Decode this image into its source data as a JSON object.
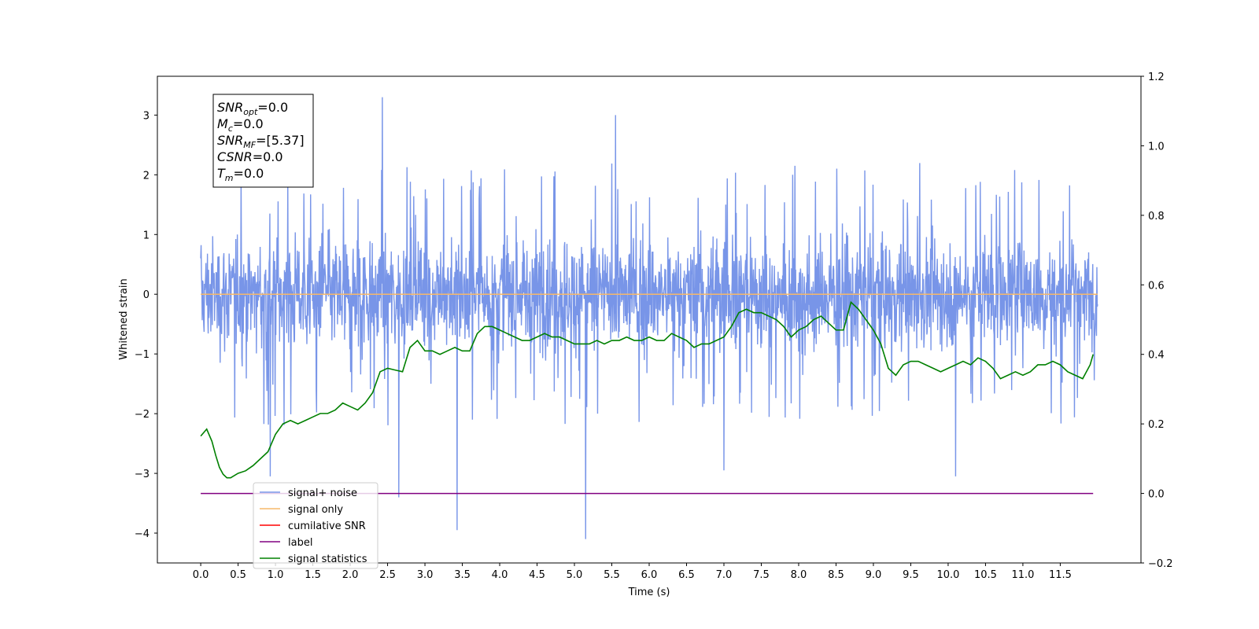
{
  "chart_data": {
    "type": "line",
    "title": "",
    "xlabel": "Time (s)",
    "ylabel": "Whitened strain",
    "xlim": [
      -0.58,
      12.58
    ],
    "ylim": [
      -4.5,
      3.65
    ],
    "y2lim": [
      -0.2,
      1.2
    ],
    "x_ticks": [
      "0.0",
      "0.5",
      "1.0",
      "1.5",
      "2.0",
      "2.5",
      "3.0",
      "3.5",
      "4.0",
      "4.5",
      "5.0",
      "5.5",
      "6.0",
      "6.5",
      "7.0",
      "7.5",
      "8.0",
      "8.5",
      "9.0",
      "9.5",
      "10.0",
      "10.5",
      "11.0",
      "11.5"
    ],
    "y_ticks": [
      "3",
      "2",
      "1",
      "0",
      "−1",
      "−2",
      "−3",
      "−4"
    ],
    "y2_ticks": [
      "1.2",
      "1.0",
      "0.8",
      "0.6",
      "0.4",
      "0.2",
      "0.0",
      "−0.2"
    ],
    "colors": {
      "signal_noise": "#7895e8",
      "signal_only": "#f5b86a",
      "cumulative_snr": "#ff0000",
      "label": "#800080",
      "signal_statistics": "#008000"
    },
    "series": [
      {
        "name": "signal+ noise",
        "description": "noise band, approximately -1.8 to +1.7 with spikes",
        "x_range": [
          0.0,
          12.0
        ],
        "spikes": [
          [
            2.43,
            3.3
          ],
          [
            5.55,
            3.0
          ],
          [
            2.65,
            -3.4
          ],
          [
            3.43,
            -3.95
          ],
          [
            5.15,
            -4.1
          ],
          [
            0.93,
            -3.05
          ],
          [
            7.0,
            -2.95
          ],
          [
            10.1,
            -3.05
          ]
        ]
      },
      {
        "name": "signal only",
        "x": [
          0.0,
          12.0
        ],
        "y": [
          0.0,
          0.0
        ]
      },
      {
        "name": "cumilative SNR",
        "x": [],
        "y": []
      },
      {
        "name": "label",
        "axis": "right",
        "x": [
          0.0,
          11.94
        ],
        "y": [
          0.0,
          0.0
        ]
      },
      {
        "name": "signal statistics",
        "axis": "right",
        "x": [
          0.0,
          0.08,
          0.15,
          0.2,
          0.25,
          0.3,
          0.35,
          0.4,
          0.5,
          0.6,
          0.7,
          0.8,
          0.9,
          1.0,
          1.1,
          1.2,
          1.3,
          1.4,
          1.5,
          1.6,
          1.7,
          1.8,
          1.9,
          2.0,
          2.1,
          2.2,
          2.3,
          2.4,
          2.5,
          2.6,
          2.7,
          2.8,
          2.9,
          3.0,
          3.1,
          3.2,
          3.3,
          3.4,
          3.5,
          3.6,
          3.7,
          3.8,
          3.9,
          4.0,
          4.1,
          4.2,
          4.3,
          4.4,
          4.5,
          4.6,
          4.7,
          4.8,
          4.9,
          5.0,
          5.1,
          5.2,
          5.3,
          5.4,
          5.5,
          5.6,
          5.7,
          5.8,
          5.9,
          6.0,
          6.1,
          6.2,
          6.3,
          6.4,
          6.5,
          6.6,
          6.7,
          6.8,
          6.9,
          7.0,
          7.1,
          7.2,
          7.3,
          7.4,
          7.5,
          7.6,
          7.7,
          7.8,
          7.9,
          8.0,
          8.1,
          8.2,
          8.3,
          8.4,
          8.5,
          8.6,
          8.7,
          8.8,
          8.9,
          9.0,
          9.1,
          9.2,
          9.3,
          9.4,
          9.5,
          9.6,
          9.7,
          9.8,
          9.9,
          10.0,
          10.1,
          10.2,
          10.3,
          10.4,
          10.5,
          10.6,
          10.7,
          10.8,
          10.9,
          11.0,
          11.1,
          11.2,
          11.3,
          11.4,
          11.5,
          11.6,
          11.7,
          11.8,
          11.9,
          11.94
        ],
        "y": [
          0.165,
          0.185,
          0.15,
          0.11,
          0.075,
          0.055,
          0.045,
          0.045,
          0.058,
          0.065,
          0.08,
          0.1,
          0.12,
          0.17,
          0.2,
          0.21,
          0.2,
          0.21,
          0.22,
          0.23,
          0.23,
          0.24,
          0.26,
          0.25,
          0.24,
          0.26,
          0.29,
          0.35,
          0.36,
          0.355,
          0.35,
          0.42,
          0.44,
          0.41,
          0.41,
          0.4,
          0.41,
          0.42,
          0.41,
          0.41,
          0.46,
          0.48,
          0.48,
          0.47,
          0.46,
          0.45,
          0.44,
          0.44,
          0.45,
          0.46,
          0.45,
          0.45,
          0.44,
          0.43,
          0.43,
          0.43,
          0.44,
          0.43,
          0.44,
          0.44,
          0.45,
          0.44,
          0.44,
          0.45,
          0.44,
          0.44,
          0.46,
          0.45,
          0.44,
          0.42,
          0.43,
          0.43,
          0.44,
          0.45,
          0.48,
          0.52,
          0.53,
          0.52,
          0.52,
          0.51,
          0.5,
          0.48,
          0.45,
          0.47,
          0.48,
          0.5,
          0.51,
          0.49,
          0.47,
          0.47,
          0.55,
          0.53,
          0.5,
          0.47,
          0.43,
          0.36,
          0.34,
          0.37,
          0.38,
          0.38,
          0.37,
          0.36,
          0.35,
          0.36,
          0.37,
          0.38,
          0.37,
          0.39,
          0.38,
          0.36,
          0.33,
          0.34,
          0.35,
          0.34,
          0.35,
          0.37,
          0.37,
          0.38,
          0.37,
          0.35,
          0.34,
          0.33,
          0.37,
          0.4
        ]
      }
    ],
    "legend": {
      "location": "lower-left",
      "entries": [
        "signal+ noise",
        "signal only",
        "cumilative SNR",
        "label",
        "signal statistics"
      ]
    },
    "info_box": {
      "lines": [
        {
          "name": "SNR",
          "sub": "opt",
          "value": "=0.0"
        },
        {
          "name": "M",
          "sub": "c",
          "value": "=0.0"
        },
        {
          "name": "SNR",
          "sub": "MF",
          "value": "=[5.37]"
        },
        {
          "name": "CSNR",
          "sub": "",
          "value": "=0.0"
        },
        {
          "name": "T",
          "sub": "m",
          "value": "=0.0"
        }
      ]
    },
    "grid": false
  }
}
